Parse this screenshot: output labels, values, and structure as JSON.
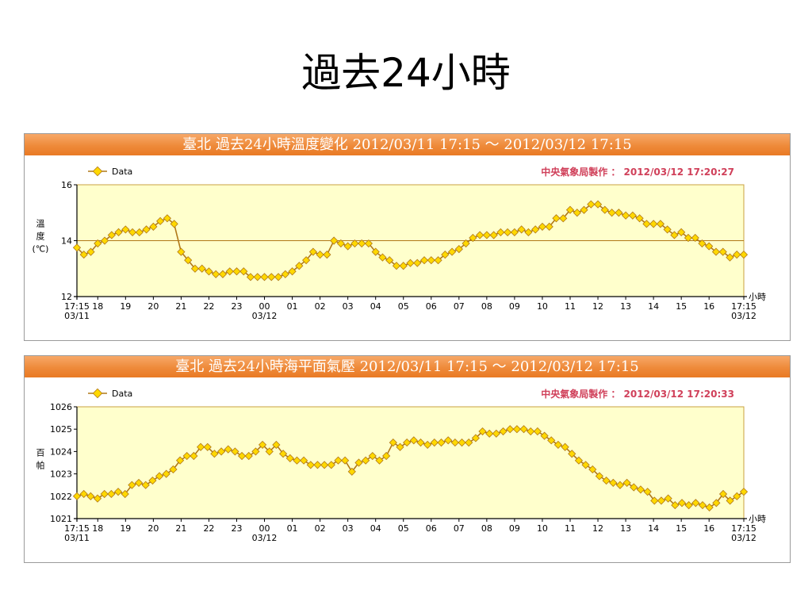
{
  "slide": {
    "title": "過去24小時"
  },
  "colors": {
    "header_bg": "#ee8a3a",
    "plot_bg": "#ffffcc",
    "plot_border": "#c8a040",
    "line": "#b07818",
    "marker": "#ffd800",
    "credit": "#d0405a"
  },
  "chart_data": [
    {
      "type": "line",
      "title": "臺北  過去24小時溫度變化  2012/03/11  17:15  ～  2012/03/12  17:15",
      "credit": "中央氣象局製作 ： 2012/03/12  17:20:27",
      "legend": "Data",
      "legend_position": "top-left",
      "ylabel": [
        "溫",
        "度",
        "(℃)"
      ],
      "xlabel": "小時",
      "ylim": [
        12,
        16
      ],
      "yticks": [
        "12",
        "14",
        "16"
      ],
      "reference_line": 14,
      "xlim": [
        0,
        24
      ],
      "xticks": [
        {
          "x": 0,
          "label": "17:15",
          "sub": "03/11"
        },
        {
          "x": 0.75,
          "label": "18",
          "sub": ""
        },
        {
          "x": 1.75,
          "label": "19",
          "sub": ""
        },
        {
          "x": 2.75,
          "label": "20",
          "sub": ""
        },
        {
          "x": 3.75,
          "label": "21",
          "sub": ""
        },
        {
          "x": 4.75,
          "label": "22",
          "sub": ""
        },
        {
          "x": 5.75,
          "label": "23",
          "sub": ""
        },
        {
          "x": 6.75,
          "label": "00",
          "sub": "03/12"
        },
        {
          "x": 7.75,
          "label": "01",
          "sub": ""
        },
        {
          "x": 8.75,
          "label": "02",
          "sub": ""
        },
        {
          "x": 9.75,
          "label": "03",
          "sub": ""
        },
        {
          "x": 10.75,
          "label": "04",
          "sub": ""
        },
        {
          "x": 11.75,
          "label": "05",
          "sub": ""
        },
        {
          "x": 12.75,
          "label": "06",
          "sub": ""
        },
        {
          "x": 13.75,
          "label": "07",
          "sub": ""
        },
        {
          "x": 14.75,
          "label": "08",
          "sub": ""
        },
        {
          "x": 15.75,
          "label": "09",
          "sub": ""
        },
        {
          "x": 16.75,
          "label": "10",
          "sub": ""
        },
        {
          "x": 17.75,
          "label": "11",
          "sub": ""
        },
        {
          "x": 18.75,
          "label": "12",
          "sub": ""
        },
        {
          "x": 19.75,
          "label": "13",
          "sub": ""
        },
        {
          "x": 20.75,
          "label": "14",
          "sub": ""
        },
        {
          "x": 21.75,
          "label": "15",
          "sub": ""
        },
        {
          "x": 22.75,
          "label": "16",
          "sub": ""
        },
        {
          "x": 24,
          "label": "17:15",
          "sub": "03/12"
        }
      ],
      "series": [
        {
          "name": "Data",
          "values": [
            13.75,
            13.5,
            13.6,
            13.9,
            14.0,
            14.2,
            14.3,
            14.4,
            14.3,
            14.3,
            14.4,
            14.5,
            14.7,
            14.8,
            14.6,
            13.6,
            13.3,
            13.0,
            13.0,
            12.9,
            12.8,
            12.8,
            12.9,
            12.9,
            12.9,
            12.7,
            12.7,
            12.7,
            12.7,
            12.7,
            12.8,
            12.9,
            13.1,
            13.3,
            13.6,
            13.5,
            13.5,
            14.0,
            13.9,
            13.8,
            13.9,
            13.9,
            13.9,
            13.6,
            13.4,
            13.3,
            13.1,
            13.1,
            13.2,
            13.2,
            13.3,
            13.3,
            13.3,
            13.5,
            13.6,
            13.7,
            13.9,
            14.1,
            14.2,
            14.2,
            14.2,
            14.3,
            14.3,
            14.3,
            14.4,
            14.3,
            14.4,
            14.5,
            14.5,
            14.8,
            14.8,
            15.1,
            15.0,
            15.1,
            15.3,
            15.3,
            15.1,
            15.0,
            15.0,
            14.9,
            14.9,
            14.8,
            14.6,
            14.6,
            14.6,
            14.4,
            14.2,
            14.3,
            14.1,
            14.1,
            13.9,
            13.8,
            13.6,
            13.6,
            13.4,
            13.5,
            13.5
          ]
        }
      ]
    },
    {
      "type": "line",
      "title": "臺北  過去24小時海平面氣壓  2012/03/11  17:15  ～  2012/03/12  17:15",
      "credit": "中央氣象局製作 ： 2012/03/12  17:20:33",
      "legend": "Data",
      "legend_position": "top-left",
      "ylabel": [
        "百",
        "帕"
      ],
      "xlabel": "小時",
      "ylim": [
        1021,
        1026
      ],
      "yticks": [
        "1021",
        "1022",
        "1023",
        "1024",
        "1025",
        "1026"
      ],
      "reference_line": null,
      "xlim": [
        0,
        24
      ],
      "xticks": [
        {
          "x": 0,
          "label": "17:15",
          "sub": "03/11"
        },
        {
          "x": 0.75,
          "label": "18",
          "sub": ""
        },
        {
          "x": 1.75,
          "label": "19",
          "sub": ""
        },
        {
          "x": 2.75,
          "label": "20",
          "sub": ""
        },
        {
          "x": 3.75,
          "label": "21",
          "sub": ""
        },
        {
          "x": 4.75,
          "label": "22",
          "sub": ""
        },
        {
          "x": 5.75,
          "label": "23",
          "sub": ""
        },
        {
          "x": 6.75,
          "label": "00",
          "sub": "03/12"
        },
        {
          "x": 7.75,
          "label": "01",
          "sub": ""
        },
        {
          "x": 8.75,
          "label": "02",
          "sub": ""
        },
        {
          "x": 9.75,
          "label": "03",
          "sub": ""
        },
        {
          "x": 10.75,
          "label": "04",
          "sub": ""
        },
        {
          "x": 11.75,
          "label": "05",
          "sub": ""
        },
        {
          "x": 12.75,
          "label": "06",
          "sub": ""
        },
        {
          "x": 13.75,
          "label": "07",
          "sub": ""
        },
        {
          "x": 14.75,
          "label": "08",
          "sub": ""
        },
        {
          "x": 15.75,
          "label": "09",
          "sub": ""
        },
        {
          "x": 16.75,
          "label": "10",
          "sub": ""
        },
        {
          "x": 17.75,
          "label": "11",
          "sub": ""
        },
        {
          "x": 18.75,
          "label": "12",
          "sub": ""
        },
        {
          "x": 19.75,
          "label": "13",
          "sub": ""
        },
        {
          "x": 20.75,
          "label": "14",
          "sub": ""
        },
        {
          "x": 21.75,
          "label": "15",
          "sub": ""
        },
        {
          "x": 22.75,
          "label": "16",
          "sub": ""
        },
        {
          "x": 24,
          "label": "17:15",
          "sub": "03/12"
        }
      ],
      "series": [
        {
          "name": "Data",
          "values": [
            1022.0,
            1022.1,
            1022.0,
            1021.9,
            1022.1,
            1022.1,
            1022.2,
            1022.1,
            1022.5,
            1022.6,
            1022.5,
            1022.7,
            1022.9,
            1023.0,
            1023.2,
            1023.6,
            1023.8,
            1023.8,
            1024.2,
            1024.2,
            1023.9,
            1024.0,
            1024.1,
            1024.0,
            1023.8,
            1023.8,
            1024.0,
            1024.3,
            1024.0,
            1024.3,
            1023.9,
            1023.7,
            1023.6,
            1023.6,
            1023.4,
            1023.4,
            1023.4,
            1023.4,
            1023.6,
            1023.6,
            1023.1,
            1023.5,
            1023.6,
            1023.8,
            1023.6,
            1023.8,
            1024.4,
            1024.2,
            1024.4,
            1024.5,
            1024.4,
            1024.3,
            1024.4,
            1024.4,
            1024.5,
            1024.4,
            1024.4,
            1024.4,
            1024.6,
            1024.9,
            1024.8,
            1024.8,
            1024.9,
            1025.0,
            1025.0,
            1025.0,
            1024.9,
            1024.9,
            1024.7,
            1024.5,
            1024.3,
            1024.2,
            1023.9,
            1023.6,
            1023.4,
            1023.2,
            1022.9,
            1022.7,
            1022.6,
            1022.5,
            1022.6,
            1022.4,
            1022.3,
            1022.2,
            1021.8,
            1021.8,
            1021.9,
            1021.6,
            1021.7,
            1021.6,
            1021.7,
            1021.6,
            1021.5,
            1021.7,
            1022.1,
            1021.8,
            1022.0,
            1022.2
          ]
        }
      ]
    }
  ]
}
